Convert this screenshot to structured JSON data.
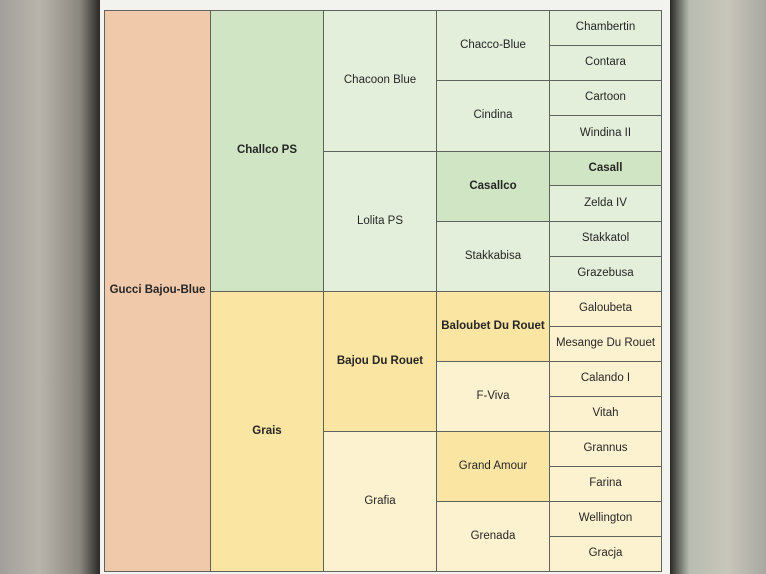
{
  "pedigree": {
    "gen1": {
      "name": "Gucci Bajou-Blue"
    },
    "gen2": [
      {
        "name": "Challco PS"
      },
      {
        "name": "Grais"
      }
    ],
    "gen3": [
      {
        "name": "Chacoon Blue"
      },
      {
        "name": "Lolita PS"
      },
      {
        "name": "Bajou Du Rouet"
      },
      {
        "name": "Grafia"
      }
    ],
    "gen4": [
      {
        "name": "Chacco-Blue"
      },
      {
        "name": "Cindina"
      },
      {
        "name": "Casallco"
      },
      {
        "name": "Stakkabisa"
      },
      {
        "name": "Baloubet Du Rouet"
      },
      {
        "name": "F-Viva"
      },
      {
        "name": "Grand Amour"
      },
      {
        "name": "Grenada"
      }
    ],
    "gen5": [
      {
        "name": "Chambertin"
      },
      {
        "name": "Contara"
      },
      {
        "name": "Cartoon"
      },
      {
        "name": "Windina II"
      },
      {
        "name": "Casall"
      },
      {
        "name": "Zelda IV"
      },
      {
        "name": "Stakkatol"
      },
      {
        "name": "Grazebusa"
      },
      {
        "name": "Galoubeta"
      },
      {
        "name": "Mesange Du Rouet"
      },
      {
        "name": "Calando I"
      },
      {
        "name": "Vitah"
      },
      {
        "name": "Grannus"
      },
      {
        "name": "Farina"
      },
      {
        "name": "Wellington"
      },
      {
        "name": "Gracja"
      }
    ]
  },
  "colors": {
    "root": "#f0c9aa",
    "sire_strong": "#cfe5c4",
    "sire_light": "#e3efdb",
    "dam_strong": "#fbe5a3",
    "dam_light": "#fdf2cf",
    "border": "#5f625d"
  }
}
